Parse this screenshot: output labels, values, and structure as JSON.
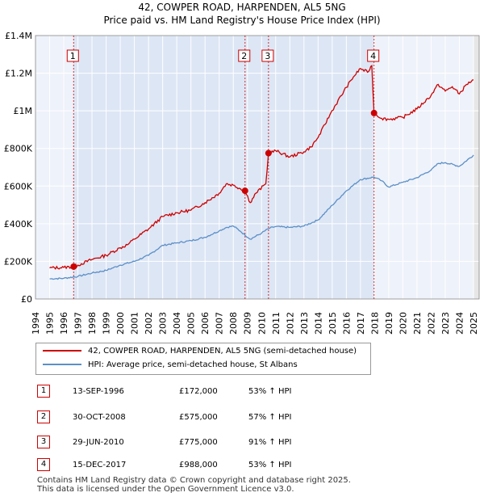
{
  "chart_data": {
    "type": "line",
    "title": "42, COWPER ROAD, HARPENDEN, AL5 5NG",
    "subtitle": "Price paid vs. HM Land Registry's House Price Index (HPI)",
    "xlabel": "",
    "ylabel": "",
    "xlim": [
      1994,
      2025.4
    ],
    "ylim": [
      0,
      1400000
    ],
    "x_ticks": [
      "1994",
      "1995",
      "1996",
      "1997",
      "1998",
      "1999",
      "2000",
      "2001",
      "2002",
      "2003",
      "2004",
      "2005",
      "2006",
      "2007",
      "2008",
      "2009",
      "2010",
      "2011",
      "2012",
      "2013",
      "2014",
      "2015",
      "2016",
      "2017",
      "2018",
      "2019",
      "2020",
      "2021",
      "2022",
      "2023",
      "2024",
      "2025"
    ],
    "y_ticks": [
      {
        "value": 0,
        "label": "£0"
      },
      {
        "value": 200000,
        "label": "£200K"
      },
      {
        "value": 400000,
        "label": "£400K"
      },
      {
        "value": 600000,
        "label": "£600K"
      },
      {
        "value": 800000,
        "label": "£800K"
      },
      {
        "value": 1000000,
        "label": "£1M"
      },
      {
        "value": 1200000,
        "label": "£1.2M"
      },
      {
        "value": 1400000,
        "label": "£1.4M"
      }
    ],
    "grid": true,
    "colors": {
      "property": "#cc0000",
      "hpi": "#5b8fc7",
      "shade": "#dde6f5",
      "vline": "#cc0000",
      "grid": "#cccccc"
    },
    "series": [
      {
        "name": "42, COWPER ROAD, HARPENDEN, AL5 5NG (semi-detached house)",
        "color": "#cc0000",
        "points": [
          [
            1995,
            165000
          ],
          [
            1996,
            168000
          ],
          [
            1996.7,
            172000
          ],
          [
            1997,
            180000
          ],
          [
            1998,
            210000
          ],
          [
            1999,
            232000
          ],
          [
            2000,
            272000
          ],
          [
            2000.5,
            288000
          ],
          [
            2001,
            318000
          ],
          [
            2002,
            372000
          ],
          [
            2003,
            438000
          ],
          [
            2004,
            458000
          ],
          [
            2005,
            472000
          ],
          [
            2006,
            512000
          ],
          [
            2007,
            562000
          ],
          [
            2007.5,
            612000
          ],
          [
            2008,
            605000
          ],
          [
            2008.83,
            575000
          ],
          [
            2009.2,
            512000
          ],
          [
            2009.6,
            562000
          ],
          [
            2010.3,
            612000
          ],
          [
            2010.49,
            775000
          ],
          [
            2011,
            788000
          ],
          [
            2012,
            755000
          ],
          [
            2013,
            782000
          ],
          [
            2013.5,
            808000
          ],
          [
            2014,
            858000
          ],
          [
            2015,
            1002000
          ],
          [
            2016,
            1125000
          ],
          [
            2016.5,
            1180000
          ],
          [
            2017,
            1225000
          ],
          [
            2017.5,
            1205000
          ],
          [
            2017.8,
            1240000
          ],
          [
            2017.96,
            988000
          ],
          [
            2018.5,
            960000
          ],
          [
            2019,
            955000
          ],
          [
            2020,
            965000
          ],
          [
            2021,
            1010000
          ],
          [
            2022,
            1082000
          ],
          [
            2022.5,
            1140000
          ],
          [
            2023,
            1105000
          ],
          [
            2023.5,
            1128000
          ],
          [
            2024,
            1090000
          ],
          [
            2024.5,
            1140000
          ],
          [
            2025,
            1165000
          ]
        ]
      },
      {
        "name": "HPI: Average price, semi-detached house, St Albans",
        "color": "#5b8fc7",
        "points": [
          [
            1995,
            107000
          ],
          [
            1996,
            110000
          ],
          [
            1997,
            120000
          ],
          [
            1998,
            138000
          ],
          [
            1999,
            152000
          ],
          [
            2000,
            180000
          ],
          [
            2001,
            200000
          ],
          [
            2002,
            232000
          ],
          [
            2003,
            285000
          ],
          [
            2004,
            298000
          ],
          [
            2005,
            310000
          ],
          [
            2006,
            328000
          ],
          [
            2007,
            362000
          ],
          [
            2007.5,
            380000
          ],
          [
            2008,
            388000
          ],
          [
            2008.5,
            360000
          ],
          [
            2009.2,
            318000
          ],
          [
            2010,
            350000
          ],
          [
            2010.5,
            375000
          ],
          [
            2011,
            385000
          ],
          [
            2012,
            380000
          ],
          [
            2013,
            388000
          ],
          [
            2014,
            420000
          ],
          [
            2015,
            498000
          ],
          [
            2016,
            575000
          ],
          [
            2017,
            635000
          ],
          [
            2017.96,
            648000
          ],
          [
            2018.5,
            628000
          ],
          [
            2019,
            595000
          ],
          [
            2020,
            620000
          ],
          [
            2021,
            645000
          ],
          [
            2022,
            685000
          ],
          [
            2022.5,
            720000
          ],
          [
            2023,
            725000
          ],
          [
            2024,
            705000
          ],
          [
            2025,
            765000
          ]
        ]
      }
    ],
    "sales": [
      {
        "n": "1",
        "x": 1996.7,
        "y": 172000,
        "date": "13-SEP-1996",
        "price": "£172,000",
        "hpi": "53% ↑ HPI"
      },
      {
        "n": "2",
        "x": 2008.83,
        "y": 575000,
        "date": "30-OCT-2008",
        "price": "£575,000",
        "hpi": "57% ↑ HPI"
      },
      {
        "n": "3",
        "x": 2010.49,
        "y": 775000,
        "date": "29-JUN-2010",
        "price": "£775,000",
        "hpi": "91% ↑ HPI"
      },
      {
        "n": "4",
        "x": 2017.96,
        "y": 988000,
        "date": "15-DEC-2017",
        "price": "£988,000",
        "hpi": "53% ↑ HPI"
      }
    ]
  },
  "legend": {
    "property_label": "42, COWPER ROAD, HARPENDEN, AL5 5NG (semi-detached house)",
    "hpi_label": "HPI: Average price, semi-detached house, St Albans"
  },
  "footer": {
    "line1": "Contains HM Land Registry data © Crown copyright and database right 2025.",
    "line2": "This data is licensed under the Open Government Licence v3.0."
  }
}
